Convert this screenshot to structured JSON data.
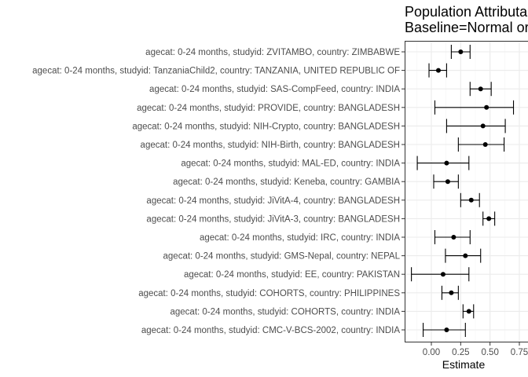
{
  "chart_data": {
    "type": "scatter",
    "title": "Population Attributa",
    "subtitle": "Baseline=Normal or",
    "xlabel": "Estimate",
    "ylabel": "",
    "xlim": [
      -0.2,
      0.75
    ],
    "xticks": [
      "0.00",
      "0.25",
      "0.50",
      "0.75"
    ],
    "xtick_values": [
      0,
      0.25,
      0.5,
      0.75
    ],
    "grid": true,
    "colors": {
      "point": "#000000",
      "grid_major": "#ebebeb",
      "grid_minor": "#f5f5f5",
      "border": "#333333"
    },
    "categories": [
      "agecat: 0-24 months, studyid: ZVITAMBO, country: ZIMBABWE",
      "agecat: 0-24 months, studyid: TanzaniaChild2, country: TANZANIA, UNITED REPUBLIC OF",
      "agecat: 0-24 months, studyid: SAS-CompFeed, country: INDIA",
      "agecat: 0-24 months, studyid: PROVIDE, country: BANGLADESH",
      "agecat: 0-24 months, studyid: NIH-Crypto, country: BANGLADESH",
      "agecat: 0-24 months, studyid: NIH-Birth, country: BANGLADESH",
      "agecat: 0-24 months, studyid: MAL-ED, country: INDIA",
      "agecat: 0-24 months, studyid: Keneba, country: GAMBIA",
      "agecat: 0-24 months, studyid: JiVitA-4, country: BANGLADESH",
      "agecat: 0-24 months, studyid: JiVitA-3, country: BANGLADESH",
      "agecat: 0-24 months, studyid: IRC, country: INDIA",
      "agecat: 0-24 months, studyid: GMS-Nepal, country: NEPAL",
      "agecat: 0-24 months, studyid: EE, country: PAKISTAN",
      "agecat: 0-24 months, studyid: COHORTS, country: PHILIPPINES",
      "agecat: 0-24 months, studyid: COHORTS, country: INDIA",
      "agecat: 0-24 months, studyid: CMC-V-BCS-2002, country: INDIA"
    ],
    "estimate": [
      0.25,
      0.06,
      0.42,
      0.47,
      0.44,
      0.46,
      0.13,
      0.14,
      0.34,
      0.49,
      0.19,
      0.29,
      0.1,
      0.17,
      0.32,
      0.13
    ],
    "lower": [
      0.17,
      -0.02,
      0.33,
      0.03,
      0.13,
      0.23,
      -0.12,
      0.02,
      0.25,
      0.44,
      0.03,
      0.12,
      -0.17,
      0.09,
      0.27,
      -0.07
    ],
    "upper": [
      0.33,
      0.13,
      0.51,
      0.7,
      0.63,
      0.62,
      0.32,
      0.23,
      0.41,
      0.54,
      0.33,
      0.42,
      0.32,
      0.23,
      0.36,
      0.29
    ]
  }
}
